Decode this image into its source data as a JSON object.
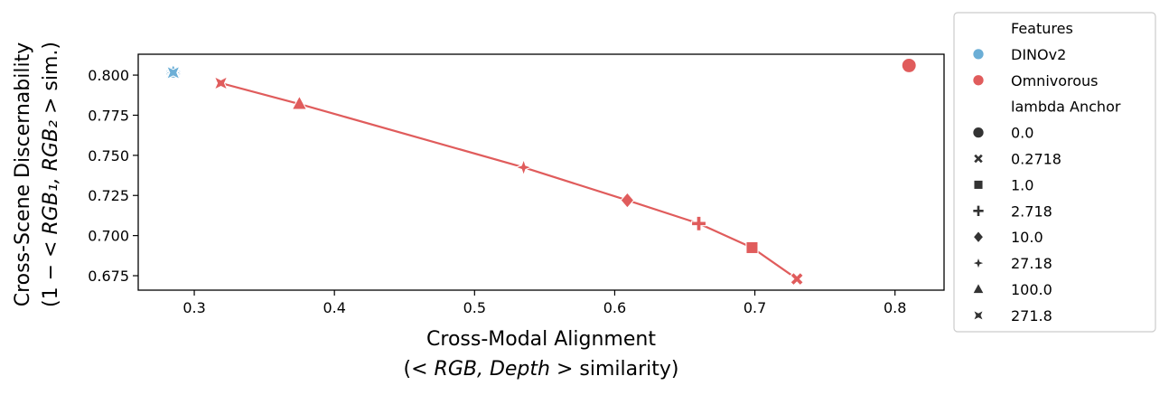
{
  "chart_data": {
    "type": "scatter",
    "xlabel": {
      "line1": "Cross-Modal Alignment",
      "line2_prefix": "(",
      "line2_math": "< RGB, Depth >",
      "line2_suffix": " similarity)"
    },
    "ylabel": {
      "line1": "Cross-Scene Discernability",
      "line2_prefix": "(1 − ",
      "line2_math": "< RGB₁, RGB₂ >",
      "line2_suffix": " sim.)"
    },
    "xlim": [
      0.26,
      0.835
    ],
    "ylim": [
      0.666,
      0.813
    ],
    "xticks": [
      "0.3",
      "0.4",
      "0.5",
      "0.6",
      "0.7",
      "0.8"
    ],
    "yticks": [
      "0.675",
      "0.700",
      "0.725",
      "0.750",
      "0.775",
      "0.800"
    ],
    "grid": false,
    "legend_position": "outside-right",
    "colors": {
      "DINOv2": "#6baed6",
      "Omnivorous": "#e05c5c"
    },
    "series": [
      {
        "name": "DINOv2",
        "points": [
          {
            "x": 0.285,
            "y": 0.8015,
            "anchor": "0.0"
          },
          {
            "x": 0.285,
            "y": 0.8015,
            "anchor": "0.2718"
          },
          {
            "x": 0.285,
            "y": 0.8015,
            "anchor": "1.0"
          },
          {
            "x": 0.285,
            "y": 0.8015,
            "anchor": "2.718"
          },
          {
            "x": 0.285,
            "y": 0.8015,
            "anchor": "10.0"
          },
          {
            "x": 0.285,
            "y": 0.8015,
            "anchor": "27.18"
          },
          {
            "x": 0.285,
            "y": 0.8015,
            "anchor": "100.0"
          },
          {
            "x": 0.285,
            "y": 0.8015,
            "anchor": "271.8"
          }
        ]
      },
      {
        "name": "Omnivorous",
        "points": [
          {
            "x": 0.81,
            "y": 0.806,
            "anchor": "0.0"
          },
          {
            "x": 0.73,
            "y": 0.673,
            "anchor": "0.2718"
          },
          {
            "x": 0.698,
            "y": 0.6925,
            "anchor": "1.0"
          },
          {
            "x": 0.66,
            "y": 0.7075,
            "anchor": "2.718"
          },
          {
            "x": 0.609,
            "y": 0.722,
            "anchor": "10.0"
          },
          {
            "x": 0.535,
            "y": 0.7425,
            "anchor": "27.18"
          },
          {
            "x": 0.375,
            "y": 0.782,
            "anchor": "100.0"
          },
          {
            "x": 0.319,
            "y": 0.795,
            "anchor": "271.8"
          }
        ],
        "line_order": [
          "271.8",
          "100.0",
          "27.18",
          "10.0",
          "2.718",
          "1.0",
          "0.2718"
        ]
      }
    ],
    "legend": {
      "features_title": "Features",
      "features": [
        "DINOv2",
        "Omnivorous"
      ],
      "anchor_title": "lambda Anchor",
      "anchors": [
        {
          "label": "0.0",
          "marker": "circle"
        },
        {
          "label": "0.2718",
          "marker": "x"
        },
        {
          "label": "1.0",
          "marker": "square"
        },
        {
          "label": "2.718",
          "marker": "plus"
        },
        {
          "label": "10.0",
          "marker": "diamond"
        },
        {
          "label": "27.18",
          "marker": "star4"
        },
        {
          "label": "100.0",
          "marker": "triangle"
        },
        {
          "label": "271.8",
          "marker": "bowtie"
        }
      ]
    }
  }
}
